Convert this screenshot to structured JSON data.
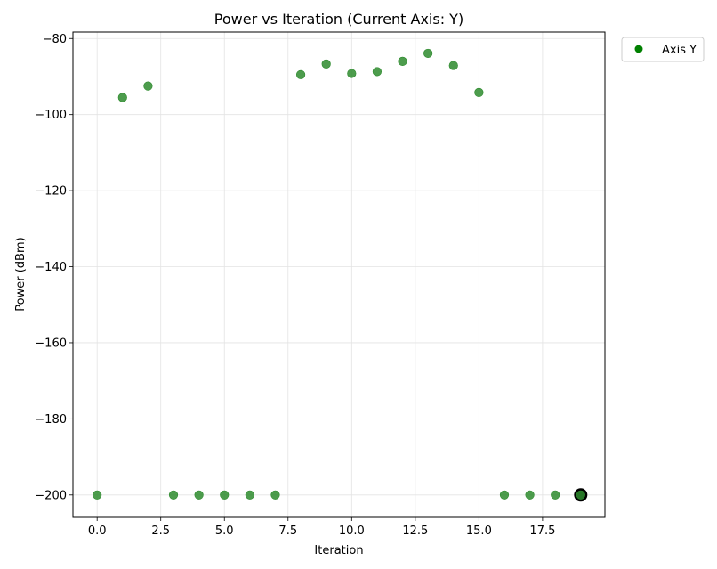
{
  "chart_data": {
    "type": "scatter",
    "title": "Power vs Iteration (Current Axis: Y)",
    "xlabel": "Iteration",
    "ylabel": "Power (dBm)",
    "xlim": [
      -0.95,
      19.95
    ],
    "ylim": [
      -205.9,
      -78.3
    ],
    "xticks": [
      0.0,
      2.5,
      5.0,
      7.5,
      10.0,
      12.5,
      15.0,
      17.5
    ],
    "xtick_labels": [
      "0.0",
      "2.5",
      "5.0",
      "7.5",
      "10.0",
      "12.5",
      "15.0",
      "17.5"
    ],
    "yticks": [
      -80,
      -100,
      -120,
      -140,
      -160,
      -180,
      -200
    ],
    "ytick_labels": [
      "−80",
      "−100",
      "−120",
      "−140",
      "−160",
      "−180",
      "−200"
    ],
    "grid": true,
    "legend_position": "outside-top-right",
    "series": [
      {
        "name": "Axis Y",
        "color": "#2e8b2e",
        "legend_color": "#008000",
        "x": [
          0,
          1,
          2,
          3,
          4,
          5,
          6,
          7,
          8,
          9,
          10,
          11,
          12,
          13,
          14,
          15,
          16,
          17,
          18,
          19
        ],
        "y": [
          -200,
          -95.5,
          -92.5,
          -200,
          -200,
          -200,
          -200,
          -200,
          -89.5,
          -86.7,
          -89.2,
          -88.7,
          -86,
          -83.9,
          -87.1,
          -94.2,
          -200,
          -200,
          -200,
          -200
        ]
      }
    ],
    "highlight": {
      "x": 19,
      "y": -200,
      "color": "#000000"
    }
  }
}
